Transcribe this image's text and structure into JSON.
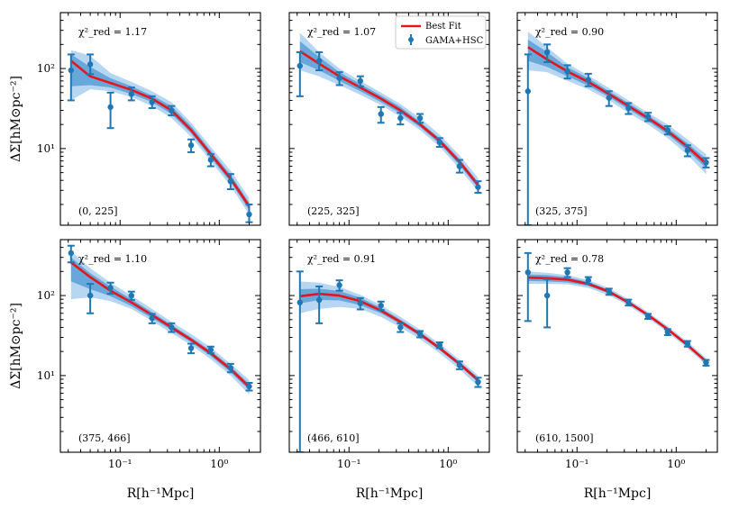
{
  "figure": {
    "xlabel": "R[h⁻¹Mpc]",
    "ylabel": "ΔΣ[hM⊙pc⁻²]",
    "xticks": [
      {
        "value": 0.1,
        "label": "10⁻¹"
      },
      {
        "value": 1,
        "label": "10⁰"
      }
    ],
    "yticks": [
      {
        "value": 10,
        "label": "10¹"
      },
      {
        "value": 100,
        "label": "10²"
      }
    ],
    "legend": {
      "fit_label": "Best Fit",
      "data_label": "GAMA+HSC",
      "placement": "top-right of panel 2"
    }
  },
  "colors": {
    "fit": "#e8141c",
    "data": "#1f77b4",
    "band_outer": "#a9cff0",
    "band_inner": "#5a9fd6"
  },
  "chart_data": [
    {
      "type": "scatter",
      "panel": 1,
      "mass_bin": "(0, 225]",
      "chi2": "χ²_red = 1.17",
      "xlim": [
        0.025,
        2.6
      ],
      "ylim": [
        1.1,
        500
      ],
      "xscale": "log",
      "yscale": "log",
      "points": [
        [
          0.032,
          95,
          40,
          150
        ],
        [
          0.05,
          113,
          85,
          150
        ],
        [
          0.08,
          33,
          18,
          50
        ],
        [
          0.13,
          48,
          40,
          58
        ],
        [
          0.21,
          38,
          32,
          45
        ],
        [
          0.33,
          30,
          26,
          34
        ],
        [
          0.52,
          11,
          9,
          13
        ],
        [
          0.82,
          7.2,
          6,
          8.5
        ],
        [
          1.3,
          3.9,
          3.1,
          4.8
        ],
        [
          2.0,
          1.5,
          1.2,
          2.0
        ]
      ],
      "fit": [
        [
          0.032,
          125
        ],
        [
          0.05,
          80
        ],
        [
          0.08,
          66
        ],
        [
          0.13,
          54
        ],
        [
          0.21,
          42
        ],
        [
          0.33,
          30
        ],
        [
          0.52,
          17
        ],
        [
          0.82,
          8.5
        ],
        [
          1.3,
          4.2
        ],
        [
          2.0,
          1.9
        ]
      ],
      "band_outer": [
        [
          0.032,
          40,
          170
        ],
        [
          0.05,
          55,
          145
        ],
        [
          0.08,
          52,
          88
        ],
        [
          0.13,
          44,
          68
        ],
        [
          0.21,
          34,
          52
        ],
        [
          0.33,
          24,
          38
        ],
        [
          0.52,
          14,
          21
        ],
        [
          0.82,
          7,
          10.5
        ],
        [
          1.3,
          3.4,
          5.3
        ],
        [
          2.0,
          1.5,
          2.4
        ]
      ],
      "band_inner": [
        [
          0.032,
          60,
          150
        ],
        [
          0.05,
          62,
          105
        ],
        [
          0.08,
          58,
          76
        ],
        [
          0.13,
          48,
          60
        ],
        [
          0.21,
          38,
          46
        ],
        [
          0.33,
          27,
          34
        ],
        [
          0.52,
          15.5,
          19
        ],
        [
          0.82,
          7.7,
          9.4
        ],
        [
          1.3,
          3.8,
          4.7
        ],
        [
          2.0,
          1.7,
          2.1
        ]
      ]
    },
    {
      "type": "scatter",
      "panel": 2,
      "mass_bin": "(225, 325]",
      "chi2": "χ²_red = 1.07",
      "xlim": [
        0.025,
        2.6
      ],
      "ylim": [
        1.1,
        500
      ],
      "xscale": "log",
      "yscale": "log",
      "points": [
        [
          0.032,
          108,
          45,
          160
        ],
        [
          0.05,
          125,
          95,
          160
        ],
        [
          0.08,
          76,
          62,
          90
        ],
        [
          0.13,
          70,
          60,
          80
        ],
        [
          0.21,
          27,
          21,
          33
        ],
        [
          0.33,
          24,
          20,
          28
        ],
        [
          0.52,
          24,
          21,
          27
        ],
        [
          0.82,
          12,
          10.5,
          13.5
        ],
        [
          1.3,
          6,
          5,
          7.2
        ],
        [
          2.0,
          3.3,
          2.8,
          3.9
        ]
      ],
      "fit": [
        [
          0.032,
          165
        ],
        [
          0.05,
          115
        ],
        [
          0.08,
          80
        ],
        [
          0.13,
          58
        ],
        [
          0.21,
          42
        ],
        [
          0.33,
          30
        ],
        [
          0.52,
          20
        ],
        [
          0.82,
          12.5
        ],
        [
          1.3,
          6.8
        ],
        [
          2.0,
          3.5
        ]
      ],
      "band_outer": [
        [
          0.032,
          95,
          280
        ],
        [
          0.05,
          80,
          160
        ],
        [
          0.08,
          62,
          100
        ],
        [
          0.13,
          47,
          70
        ],
        [
          0.21,
          35,
          50
        ],
        [
          0.33,
          25,
          36
        ],
        [
          0.52,
          17,
          24
        ],
        [
          0.82,
          10.5,
          15
        ],
        [
          1.3,
          5.6,
          8.2
        ],
        [
          2.0,
          2.9,
          4.3
        ]
      ],
      "band_inner": [
        [
          0.032,
          120,
          220
        ],
        [
          0.05,
          95,
          140
        ],
        [
          0.08,
          70,
          90
        ],
        [
          0.13,
          52,
          64
        ],
        [
          0.21,
          38,
          46
        ],
        [
          0.33,
          27.5,
          33
        ],
        [
          0.52,
          18.5,
          21.5
        ],
        [
          0.82,
          11.5,
          13.5
        ],
        [
          1.3,
          6.2,
          7.4
        ],
        [
          2.0,
          3.2,
          3.8
        ]
      ]
    },
    {
      "type": "scatter",
      "panel": 3,
      "mass_bin": "(325, 375]",
      "chi2": "χ²_red = 0.90",
      "xlim": [
        0.025,
        2.6
      ],
      "ylim": [
        1.1,
        500
      ],
      "xscale": "log",
      "yscale": "log",
      "points": [
        [
          0.032,
          52,
          1.1,
          150
        ],
        [
          0.05,
          160,
          120,
          200
        ],
        [
          0.08,
          92,
          75,
          110
        ],
        [
          0.13,
          72,
          60,
          86
        ],
        [
          0.21,
          43,
          34,
          52
        ],
        [
          0.33,
          32,
          27,
          37
        ],
        [
          0.52,
          25,
          22,
          28
        ],
        [
          0.82,
          17,
          15,
          19
        ],
        [
          1.3,
          9.5,
          8,
          11
        ],
        [
          2.0,
          6.7,
          5.8,
          7.6
        ]
      ],
      "fit": [
        [
          0.032,
          185
        ],
        [
          0.05,
          130
        ],
        [
          0.08,
          92
        ],
        [
          0.13,
          68
        ],
        [
          0.21,
          48
        ],
        [
          0.33,
          34
        ],
        [
          0.52,
          24
        ],
        [
          0.82,
          16.5
        ],
        [
          1.3,
          10.5
        ],
        [
          2.0,
          6.5
        ]
      ],
      "band_outer": [
        [
          0.032,
          95,
          290
        ],
        [
          0.05,
          90,
          185
        ],
        [
          0.08,
          70,
          115
        ],
        [
          0.13,
          55,
          82
        ],
        [
          0.21,
          40,
          57
        ],
        [
          0.33,
          28,
          40
        ],
        [
          0.52,
          20,
          28
        ],
        [
          0.82,
          13.5,
          20
        ],
        [
          1.3,
          8.3,
          13
        ],
        [
          2.0,
          4.8,
          8.5
        ]
      ],
      "band_inner": [
        [
          0.032,
          125,
          230
        ],
        [
          0.05,
          105,
          160
        ],
        [
          0.08,
          80,
          104
        ],
        [
          0.13,
          61,
          76
        ],
        [
          0.21,
          44,
          52
        ],
        [
          0.33,
          31,
          37
        ],
        [
          0.52,
          22,
          26
        ],
        [
          0.82,
          15,
          18
        ],
        [
          1.3,
          9.4,
          11.6
        ],
        [
          2.0,
          5.7,
          7.4
        ]
      ]
    },
    {
      "type": "scatter",
      "panel": 4,
      "mass_bin": "(375, 466]",
      "chi2": "χ²_red = 1.10",
      "xlim": [
        0.025,
        2.6
      ],
      "ylim": [
        1.1,
        500
      ],
      "xscale": "log",
      "yscale": "log",
      "points": [
        [
          0.032,
          340,
          260,
          420
        ],
        [
          0.05,
          100,
          60,
          140
        ],
        [
          0.08,
          125,
          105,
          145
        ],
        [
          0.13,
          100,
          88,
          112
        ],
        [
          0.21,
          52,
          45,
          59
        ],
        [
          0.33,
          40,
          35,
          45
        ],
        [
          0.52,
          22,
          19,
          25
        ],
        [
          0.82,
          21,
          19,
          23
        ],
        [
          1.3,
          12.5,
          11,
          14
        ],
        [
          2.0,
          7.3,
          6.5,
          8.1
        ]
      ],
      "fit": [
        [
          0.032,
          260
        ],
        [
          0.05,
          170
        ],
        [
          0.08,
          115
        ],
        [
          0.13,
          82
        ],
        [
          0.21,
          57
        ],
        [
          0.33,
          40
        ],
        [
          0.52,
          28
        ],
        [
          0.82,
          19
        ],
        [
          1.3,
          12
        ],
        [
          2.0,
          7.2
        ]
      ],
      "band_outer": [
        [
          0.032,
          90,
          360
        ],
        [
          0.05,
          95,
          220
        ],
        [
          0.08,
          85,
          145
        ],
        [
          0.13,
          68,
          100
        ],
        [
          0.21,
          48,
          68
        ],
        [
          0.33,
          34,
          47
        ],
        [
          0.52,
          24,
          33
        ],
        [
          0.82,
          16,
          22.5
        ],
        [
          1.3,
          10,
          14
        ],
        [
          2.0,
          5.8,
          8.8
        ]
      ],
      "band_inner": [
        [
          0.032,
          150,
          300
        ],
        [
          0.05,
          120,
          190
        ],
        [
          0.08,
          98,
          130
        ],
        [
          0.13,
          74,
          90
        ],
        [
          0.21,
          52,
          62
        ],
        [
          0.33,
          37,
          43
        ],
        [
          0.52,
          26,
          30
        ],
        [
          0.82,
          17.5,
          20.5
        ],
        [
          1.3,
          11,
          13
        ],
        [
          2.0,
          6.6,
          7.9
        ]
      ]
    },
    {
      "type": "scatter",
      "panel": 5,
      "mass_bin": "(466, 610]",
      "chi2": "χ²_red = 0.91",
      "xlim": [
        0.025,
        2.6
      ],
      "ylim": [
        1.1,
        500
      ],
      "xscale": "log",
      "yscale": "log",
      "points": [
        [
          0.032,
          82,
          1.1,
          200
        ],
        [
          0.05,
          88,
          45,
          130
        ],
        [
          0.08,
          135,
          115,
          155
        ],
        [
          0.13,
          80,
          67,
          93
        ],
        [
          0.21,
          75,
          66,
          84
        ],
        [
          0.33,
          40,
          35,
          45
        ],
        [
          0.52,
          33,
          30,
          36
        ],
        [
          0.82,
          24,
          22,
          26
        ],
        [
          1.3,
          13.5,
          12,
          15
        ],
        [
          2.0,
          8.3,
          7.2,
          9.4
        ]
      ],
      "fit": [
        [
          0.032,
          98
        ],
        [
          0.05,
          105
        ],
        [
          0.08,
          100
        ],
        [
          0.13,
          85
        ],
        [
          0.21,
          65
        ],
        [
          0.33,
          47
        ],
        [
          0.52,
          33
        ],
        [
          0.82,
          22
        ],
        [
          1.3,
          14
        ],
        [
          2.0,
          8.8
        ]
      ],
      "band_outer": [
        [
          0.032,
          60,
          150
        ],
        [
          0.05,
          68,
          145
        ],
        [
          0.08,
          72,
          128
        ],
        [
          0.13,
          68,
          102
        ],
        [
          0.21,
          54,
          76
        ],
        [
          0.33,
          40,
          54
        ],
        [
          0.52,
          28.5,
          37.5
        ],
        [
          0.82,
          19,
          25
        ],
        [
          1.3,
          12,
          15.8
        ],
        [
          2.0,
          7.3,
          10
        ]
      ],
      "band_inner": [
        [
          0.032,
          80,
          120
        ],
        [
          0.05,
          88,
          122
        ],
        [
          0.08,
          87,
          114
        ],
        [
          0.13,
          76,
          94
        ],
        [
          0.21,
          60,
          70
        ],
        [
          0.33,
          44,
          50
        ],
        [
          0.52,
          31,
          35
        ],
        [
          0.82,
          20.8,
          23.3
        ],
        [
          1.3,
          13.2,
          14.8
        ],
        [
          2.0,
          8.2,
          9.4
        ]
      ]
    },
    {
      "type": "scatter",
      "panel": 6,
      "mass_bin": "(610, 1500]",
      "chi2": "χ²_red = 0.78",
      "xlim": [
        0.025,
        2.6
      ],
      "ylim": [
        1.1,
        500
      ],
      "xscale": "log",
      "yscale": "log",
      "points": [
        [
          0.032,
          195,
          48,
          340
        ],
        [
          0.05,
          100,
          40,
          160
        ],
        [
          0.08,
          195,
          170,
          220
        ],
        [
          0.13,
          155,
          140,
          170
        ],
        [
          0.21,
          112,
          102,
          122
        ],
        [
          0.33,
          82,
          75,
          89
        ],
        [
          0.52,
          55,
          51,
          59
        ],
        [
          0.82,
          35,
          32,
          38
        ],
        [
          1.3,
          25,
          23,
          27
        ],
        [
          2.0,
          14.5,
          13.3,
          15.7
        ]
      ],
      "fit": [
        [
          0.032,
          168
        ],
        [
          0.05,
          165
        ],
        [
          0.08,
          158
        ],
        [
          0.13,
          140
        ],
        [
          0.21,
          112
        ],
        [
          0.33,
          82
        ],
        [
          0.52,
          57
        ],
        [
          0.82,
          38
        ],
        [
          1.3,
          24
        ],
        [
          2.0,
          15
        ]
      ],
      "band_outer": [
        [
          0.032,
          140,
          200
        ],
        [
          0.05,
          140,
          193
        ],
        [
          0.08,
          138,
          180
        ],
        [
          0.13,
          125,
          156
        ],
        [
          0.21,
          101,
          124
        ],
        [
          0.33,
          75,
          90
        ],
        [
          0.52,
          52,
          62
        ],
        [
          0.82,
          34.5,
          41.5
        ],
        [
          1.3,
          22,
          26.5
        ],
        [
          2.0,
          13.5,
          16.5
        ]
      ],
      "band_inner": [
        [
          0.032,
          152,
          184
        ],
        [
          0.05,
          150,
          180
        ],
        [
          0.08,
          146,
          170
        ],
        [
          0.13,
          132,
          148
        ],
        [
          0.21,
          106,
          118
        ],
        [
          0.33,
          78.5,
          86
        ],
        [
          0.52,
          54.5,
          59.5
        ],
        [
          0.82,
          36.3,
          39.7
        ],
        [
          1.3,
          23,
          25
        ],
        [
          2.0,
          14.3,
          15.7
        ]
      ]
    }
  ]
}
